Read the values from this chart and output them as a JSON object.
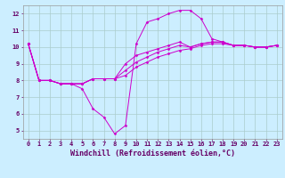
{
  "xlabel": "Windchill (Refroidissement éolien,°C)",
  "background_color": "#cceeff",
  "grid_color": "#aacccc",
  "line_color": "#cc00cc",
  "xlim": [
    -0.5,
    23.5
  ],
  "ylim": [
    4.5,
    12.5
  ],
  "xticks": [
    0,
    1,
    2,
    3,
    4,
    5,
    6,
    7,
    8,
    9,
    10,
    11,
    12,
    13,
    14,
    15,
    16,
    17,
    18,
    19,
    20,
    21,
    22,
    23
  ],
  "yticks": [
    5,
    6,
    7,
    8,
    9,
    10,
    11,
    12
  ],
  "line1_x": [
    0,
    1,
    2,
    3,
    4,
    5,
    6,
    7,
    8,
    9,
    10,
    11,
    12,
    13,
    14,
    15,
    16,
    17,
    18,
    19,
    20,
    21,
    22,
    23
  ],
  "line1_y": [
    10.2,
    8.0,
    8.0,
    7.8,
    7.8,
    7.5,
    6.3,
    5.8,
    4.8,
    5.3,
    10.2,
    11.5,
    11.7,
    12.0,
    12.2,
    12.2,
    11.7,
    10.5,
    10.3,
    10.1,
    10.1,
    10.0,
    10.0,
    10.1
  ],
  "line2_x": [
    0,
    1,
    2,
    3,
    4,
    5,
    6,
    7,
    8,
    9,
    10,
    11,
    12,
    13,
    14,
    15,
    16,
    17,
    18,
    19,
    20,
    21,
    22,
    23
  ],
  "line2_y": [
    10.2,
    8.0,
    8.0,
    7.8,
    7.8,
    7.8,
    8.1,
    8.1,
    8.1,
    8.3,
    8.8,
    9.1,
    9.4,
    9.6,
    9.8,
    9.9,
    10.1,
    10.2,
    10.2,
    10.1,
    10.1,
    10.0,
    10.0,
    10.1
  ],
  "line3_x": [
    0,
    1,
    2,
    3,
    4,
    5,
    6,
    7,
    8,
    9,
    10,
    11,
    12,
    13,
    14,
    15,
    16,
    17,
    18,
    19,
    20,
    21,
    22,
    23
  ],
  "line3_y": [
    10.2,
    8.0,
    8.0,
    7.8,
    7.8,
    7.8,
    8.1,
    8.1,
    8.1,
    8.6,
    9.1,
    9.4,
    9.7,
    9.9,
    10.1,
    10.0,
    10.2,
    10.3,
    10.3,
    10.1,
    10.1,
    10.0,
    10.0,
    10.1
  ],
  "line4_x": [
    0,
    1,
    2,
    3,
    4,
    5,
    6,
    7,
    8,
    9,
    10,
    11,
    12,
    13,
    14,
    15,
    16,
    17,
    18,
    19,
    20,
    21,
    22,
    23
  ],
  "line4_y": [
    10.2,
    8.0,
    8.0,
    7.8,
    7.8,
    7.8,
    8.1,
    8.1,
    8.1,
    9.0,
    9.5,
    9.7,
    9.9,
    10.1,
    10.3,
    10.0,
    10.2,
    10.3,
    10.3,
    10.1,
    10.1,
    10.0,
    10.0,
    10.1
  ],
  "marker": "D",
  "markersize": 1.5,
  "linewidth": 0.7,
  "tick_fontsize": 5,
  "xlabel_fontsize": 6
}
